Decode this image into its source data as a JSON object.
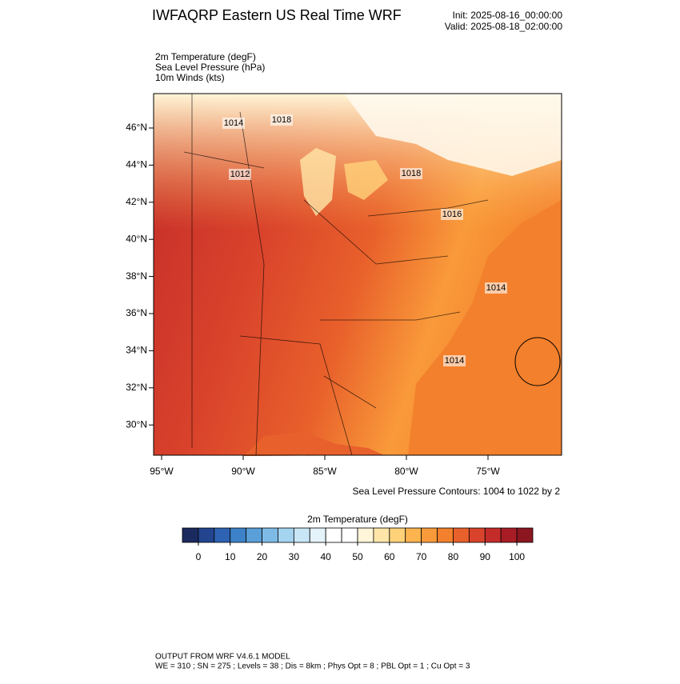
{
  "header": {
    "title": "IWFAQRP Eastern US Real Time WRF",
    "init": "Init: 2025-08-16_00:00:00",
    "valid": "Valid: 2025-08-18_02:00:00"
  },
  "fields": [
    "2m Temperature   (degF)",
    "Sea Level Pressure   (hPa)",
    "10m Winds   (kts)"
  ],
  "map": {
    "lat_labels": [
      "46°N",
      "44°N",
      "42°N",
      "40°N",
      "38°N",
      "36°N",
      "34°N",
      "32°N",
      "30°N"
    ],
    "lon_labels": [
      "95°W",
      "90°W",
      "85°W",
      "80°W",
      "75°W"
    ],
    "contour_labels": [
      "1014",
      "1018",
      "1012",
      "1018",
      "1016",
      "1014",
      "1014"
    ],
    "contour_note": "Sea Level Pressure Contours: 1004 to 1022 by 2"
  },
  "colorbar": {
    "title": "2m Temperature  (degF)",
    "lim": [
      -5,
      105
    ],
    "ticks": [
      0,
      10,
      20,
      30,
      40,
      50,
      60,
      70,
      80,
      90,
      100
    ],
    "colors": [
      "#1b2a5e",
      "#23448f",
      "#2e63b3",
      "#3d82c9",
      "#5a9fd8",
      "#7dbbe6",
      "#a4d4f0",
      "#c8e6f6",
      "#e4f2fa",
      "#ffffff",
      "#ffffff",
      "#fff5d8",
      "#ffe6a8",
      "#ffd27a",
      "#fdb44f",
      "#f99a3a",
      "#f3802c",
      "#e8602b",
      "#d9432b",
      "#c42c2a",
      "#a81d25",
      "#8b1620"
    ]
  },
  "footer": {
    "line1": "OUTPUT FROM WRF V4.6.1 MODEL",
    "line2": "WE = 310 ; SN = 275 ; Levels = 38 ; Dis = 8km ; Phys Opt = 8 ; PBL Opt = 1 ; Cu Opt = 3"
  }
}
